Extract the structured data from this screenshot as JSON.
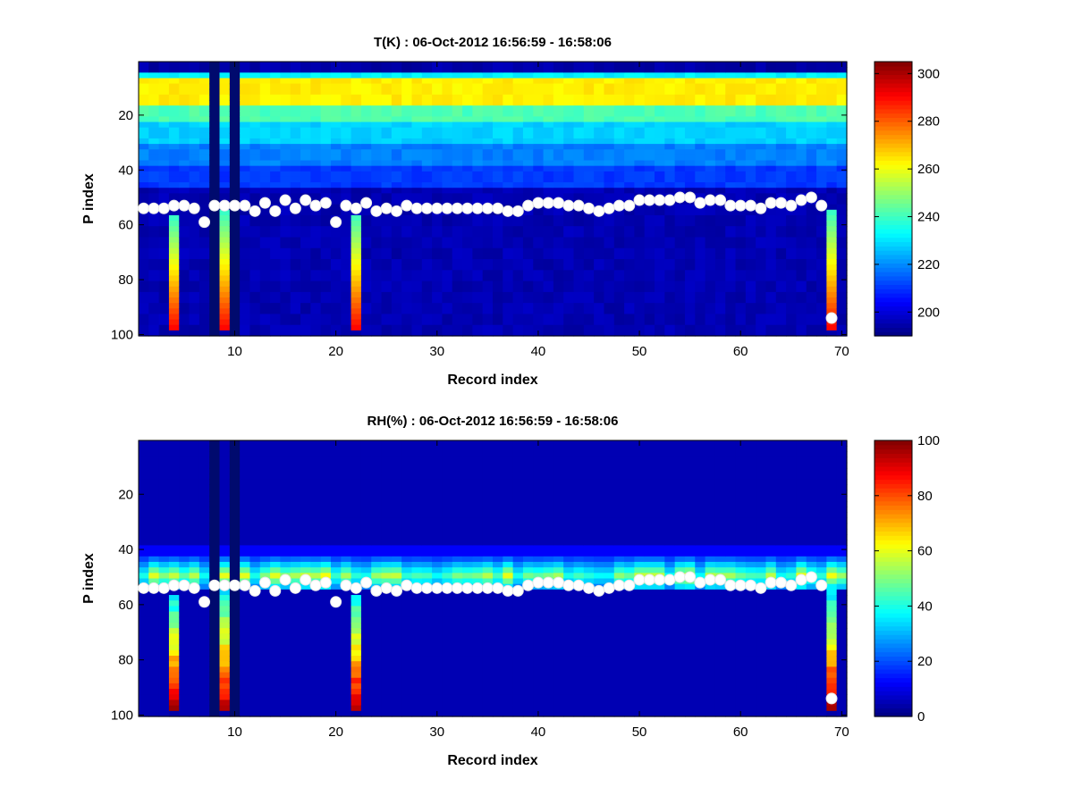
{
  "chart_data": [
    {
      "type": "heatmap",
      "title": "T(K) : 06-Oct-2012 16:56:59 - 16:58:06",
      "xlabel": "Record index",
      "ylabel": "P index",
      "xlim": [
        0.5,
        70.5
      ],
      "ylim": [
        0.5,
        100.5
      ],
      "y_reversed": true,
      "x_ticks": [
        "10",
        "20",
        "30",
        "40",
        "50",
        "60",
        "70"
      ],
      "y_ticks": [
        "20",
        "40",
        "60",
        "80",
        "100"
      ],
      "colorbar": {
        "min": 190,
        "max": 305,
        "ticks": [
          "200",
          "220",
          "240",
          "260",
          "280",
          "300"
        ]
      },
      "marker_p_index": [
        54,
        54,
        54,
        53,
        53,
        54,
        59,
        53,
        53,
        53,
        53,
        55,
        52,
        55,
        51,
        54,
        51,
        53,
        52,
        59,
        53,
        54,
        52,
        55,
        54,
        55,
        53,
        54,
        54,
        54,
        54,
        54,
        54,
        54,
        54,
        54,
        55,
        55,
        53,
        52,
        52,
        52,
        53,
        53,
        54,
        55,
        54,
        53,
        53,
        51,
        51,
        51,
        51,
        50,
        50,
        52,
        51,
        51,
        53,
        53,
        53,
        54,
        52,
        52,
        53,
        51,
        50,
        53,
        94
      ]
    },
    {
      "type": "heatmap",
      "title": "RH(%) : 06-Oct-2012 16:56:59 - 16:58:06",
      "xlabel": "Record index",
      "ylabel": "P index",
      "xlim": [
        0.5,
        70.5
      ],
      "ylim": [
        0.5,
        100.5
      ],
      "y_reversed": true,
      "x_ticks": [
        "10",
        "20",
        "30",
        "40",
        "50",
        "60",
        "70"
      ],
      "y_ticks": [
        "20",
        "40",
        "60",
        "80",
        "100"
      ],
      "colorbar": {
        "min": 0,
        "max": 100,
        "ticks": [
          "0",
          "20",
          "40",
          "60",
          "80",
          "100"
        ]
      },
      "marker_p_index": [
        54,
        54,
        54,
        53,
        53,
        54,
        59,
        53,
        53,
        53,
        53,
        55,
        52,
        55,
        51,
        54,
        51,
        53,
        52,
        59,
        53,
        54,
        52,
        55,
        54,
        55,
        53,
        54,
        54,
        54,
        54,
        54,
        54,
        54,
        54,
        54,
        55,
        55,
        53,
        52,
        52,
        52,
        53,
        53,
        54,
        55,
        54,
        53,
        53,
        51,
        51,
        51,
        51,
        50,
        50,
        52,
        51,
        51,
        53,
        53,
        53,
        54,
        52,
        52,
        53,
        51,
        50,
        53,
        94
      ]
    }
  ]
}
